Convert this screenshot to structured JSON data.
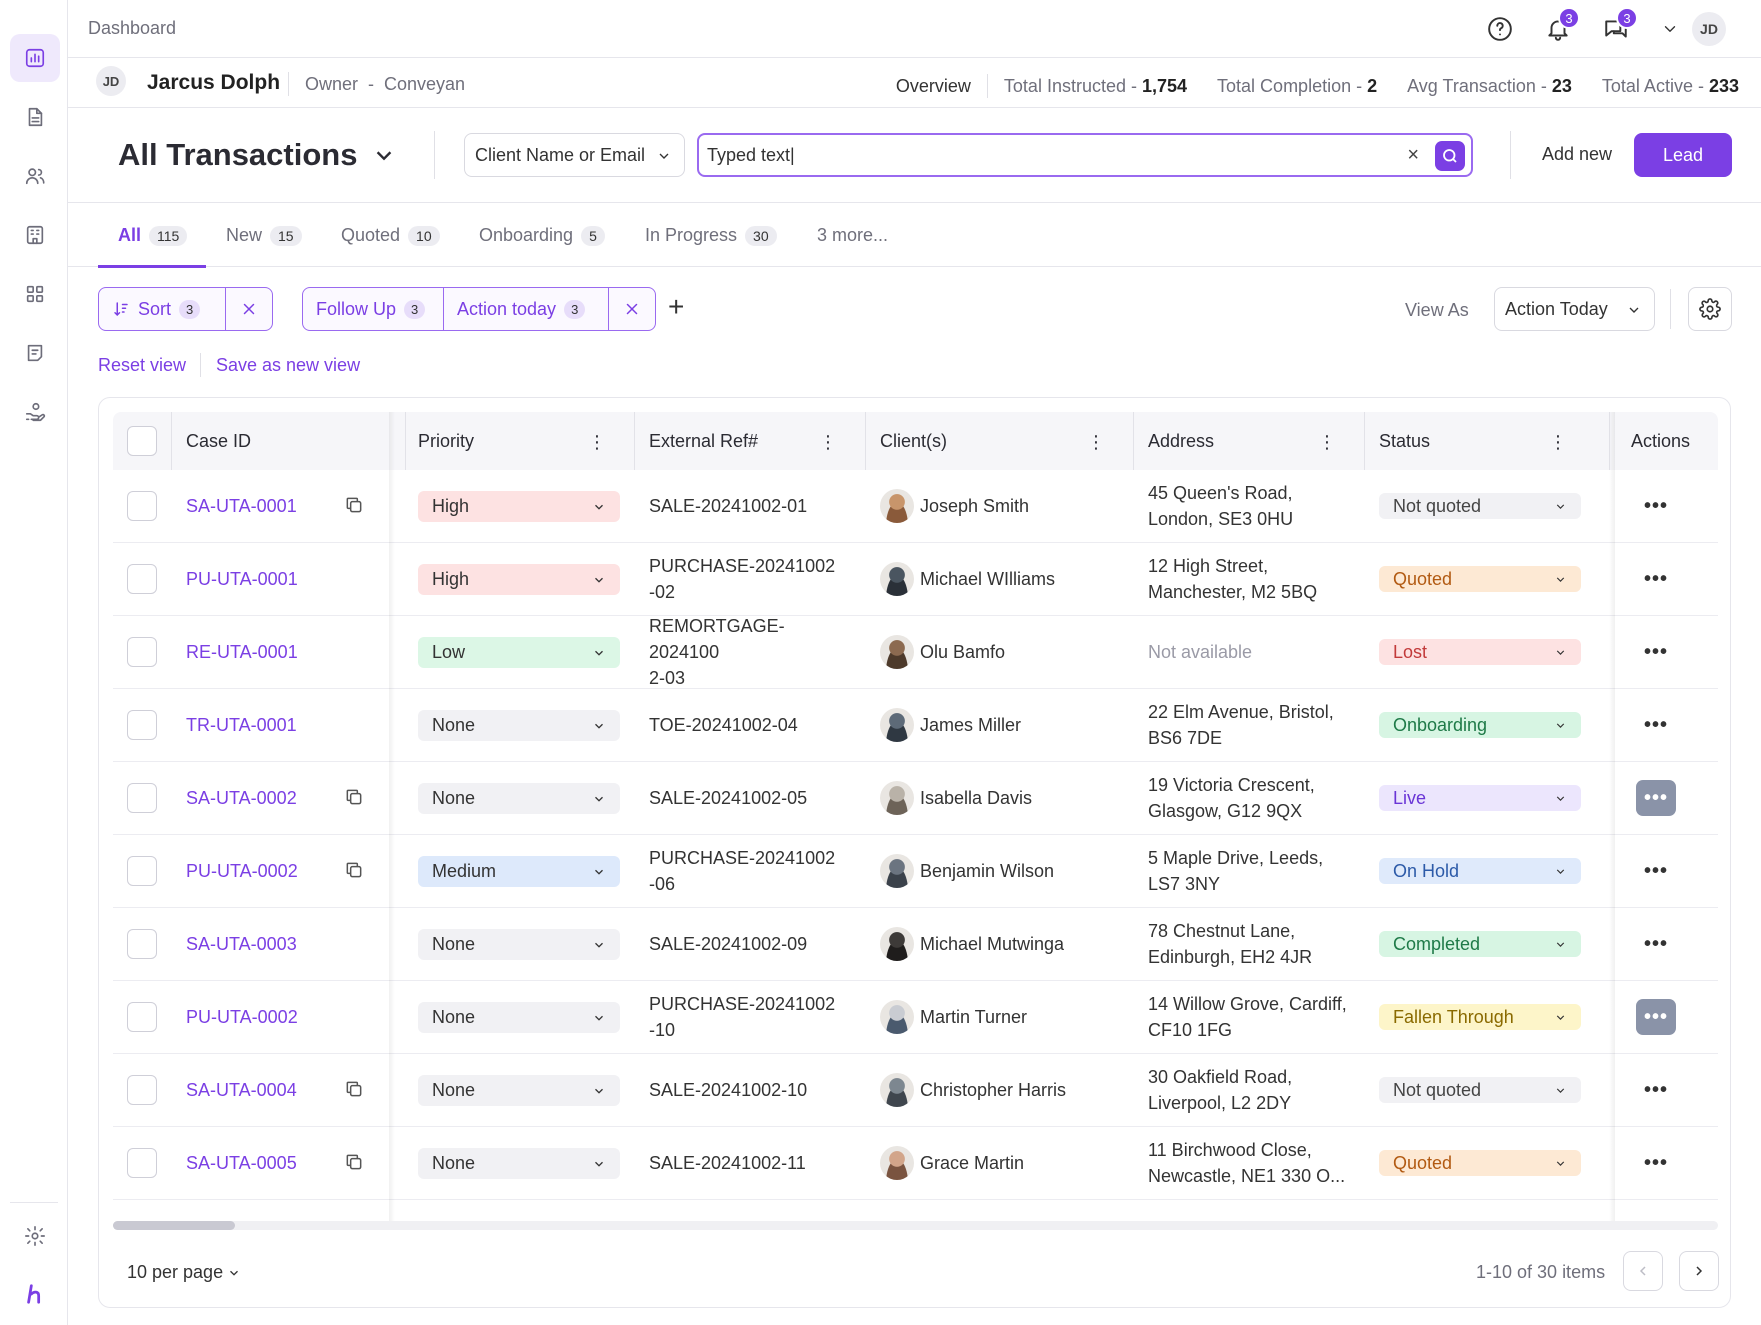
{
  "colors": {
    "accent": "#7b3fe4"
  },
  "topbar": {
    "breadcrumb": "Dashboard",
    "notifications_count": "3",
    "messages_count": "3",
    "user_initials": "JD"
  },
  "userbar": {
    "initials": "JD",
    "name": "Jarcus Dolph",
    "role": "Owner  -  Conveyan",
    "overview": "Overview",
    "stats": [
      {
        "label": "Total Instructed - ",
        "value": "1,754"
      },
      {
        "label": "Total Completion - ",
        "value": "2"
      },
      {
        "label": "Avg Transaction - ",
        "value": "23"
      },
      {
        "label": "Total Active - ",
        "value": "233"
      }
    ]
  },
  "header": {
    "title": "All Transactions",
    "search_field_select": "Client Name or Email",
    "search_value": "Typed text|",
    "add_new": "Add new",
    "lead_button": "Lead"
  },
  "tabs": [
    {
      "label": "All",
      "count": "115"
    },
    {
      "label": "New",
      "count": "15"
    },
    {
      "label": "Quoted",
      "count": "10"
    },
    {
      "label": "Onboarding",
      "count": "5"
    },
    {
      "label": "In Progress",
      "count": "30"
    },
    {
      "label": "3 more..."
    }
  ],
  "filters": {
    "sort_label": "Sort",
    "sort_count": "3",
    "followup_label": "Follow Up",
    "followup_count": "3",
    "action_label": "Action today",
    "action_count": "3",
    "view_as_label": "View As",
    "view_as_value": "Action Today",
    "reset_view": "Reset view",
    "save_view": "Save as new view"
  },
  "table": {
    "columns": [
      "Case ID",
      "Priority",
      "External Ref#",
      "Client(s)",
      "Address",
      "Status",
      "Actions"
    ],
    "rows": [
      {
        "case_id": "SA-UTA-0001",
        "copy": true,
        "priority": "High",
        "ref": "SALE-20241002-01",
        "client": "Joseph Smith",
        "address": "45 Queen's Road,\nLondon, SE3 0HU",
        "status": "Not quoted"
      },
      {
        "case_id": "PU-UTA-0001",
        "copy": false,
        "priority": "High",
        "ref": "PURCHASE-20241002\n-02",
        "client": "Michael WIlliams",
        "address": "12 High Street,\nManchester, M2 5BQ",
        "status": "Quoted"
      },
      {
        "case_id": "RE-UTA-0001",
        "copy": false,
        "priority": "Low",
        "ref": "REMORTGAGE-2024100\n2-03",
        "client": "Olu Bamfo",
        "address": "Not available",
        "status": "Lost"
      },
      {
        "case_id": "TR-UTA-0001",
        "copy": false,
        "priority": "None",
        "ref": "TOE-20241002-04",
        "client": "James Miller",
        "address": "22 Elm Avenue, Bristol,\nBS6 7DE",
        "status": "Onboarding"
      },
      {
        "case_id": "SA-UTA-0002",
        "copy": true,
        "priority": "None",
        "ref": "SALE-20241002-05",
        "client": "Isabella Davis",
        "address": "19 Victoria Crescent,\nGlasgow, G12 9QX",
        "status": "Live"
      },
      {
        "case_id": "PU-UTA-0002",
        "copy": true,
        "priority": "Medium",
        "ref": "PURCHASE-20241002\n-06",
        "client": "Benjamin Wilson",
        "address": "5 Maple Drive, Leeds,\nLS7 3NY",
        "status": "On Hold"
      },
      {
        "case_id": "SA-UTA-0003",
        "copy": false,
        "priority": "None",
        "ref": "SALE-20241002-09",
        "client": "Michael Mutwinga",
        "address": "78 Chestnut Lane,\nEdinburgh, EH2 4JR",
        "status": "Completed"
      },
      {
        "case_id": "PU-UTA-0002",
        "copy": false,
        "priority": "None",
        "ref": "PURCHASE-20241002\n-10",
        "client": "Martin Turner",
        "address": "14 Willow Grove, Cardiff,\nCF10 1FG",
        "status": "Fallen Through"
      },
      {
        "case_id": "SA-UTA-0004",
        "copy": true,
        "priority": "None",
        "ref": "SALE-20241002-10",
        "client": "Christopher Harris",
        "address": "30 Oakfield Road,\nLiverpool, L2 2DY",
        "status": "Not quoted"
      },
      {
        "case_id": "SA-UTA-0005",
        "copy": true,
        "priority": "None",
        "ref": "SALE-20241002-11",
        "client": "Grace Martin",
        "address": "11 Birchwood Close,\nNewcastle, NE1 330 O...",
        "status": "Quoted"
      }
    ]
  },
  "pagination": {
    "per_page": "10 per page",
    "info": "1-10 of 30 items"
  }
}
